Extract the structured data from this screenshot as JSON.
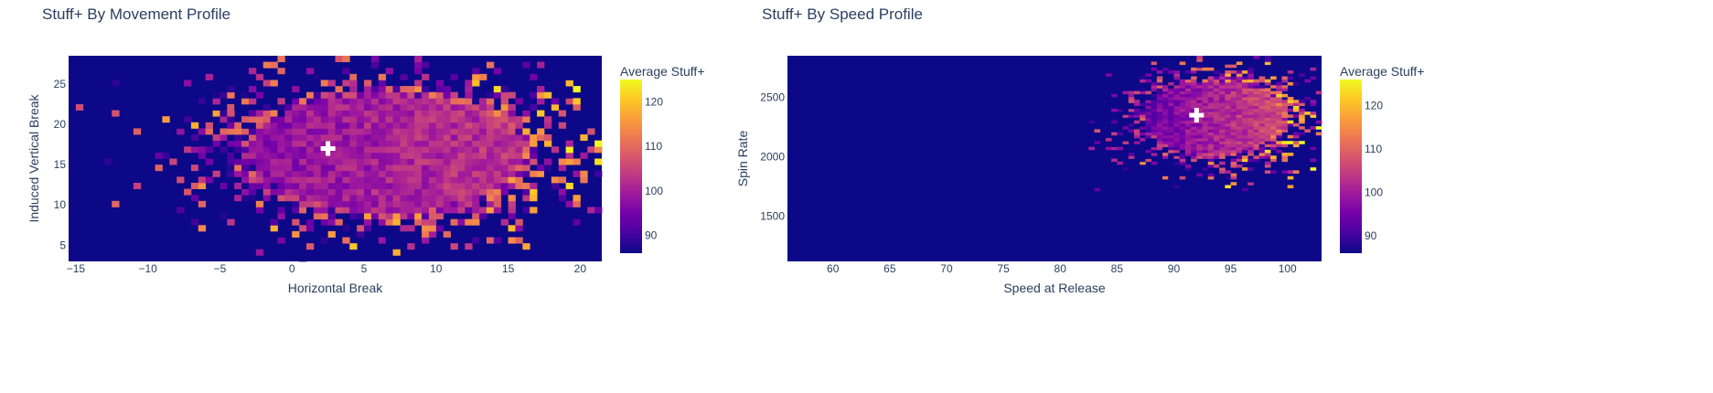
{
  "colors": {
    "background": "#0d0887",
    "colorscale": [
      "#0d0887",
      "#46039f",
      "#7201a8",
      "#9c179e",
      "#bd3786",
      "#d8576b",
      "#ed7953",
      "#fb9f3a",
      "#fdca26",
      "#f0f921"
    ],
    "marker": "#ffffff",
    "text": "#2a3f5f"
  },
  "chart_data": [
    {
      "type": "heatmap",
      "title": "Stuff+ By Movement Profile",
      "xlabel": "Horizontal Break",
      "ylabel": "Induced Vertical Break",
      "xlim": [
        -15.5,
        21.5
      ],
      "ylim": [
        3,
        28.5
      ],
      "xticks": [
        -15,
        -10,
        -5,
        0,
        5,
        10,
        15,
        20
      ],
      "yticks": [
        5,
        10,
        15,
        20,
        25
      ],
      "bins": {
        "x": 74,
        "y": 34
      },
      "density": {
        "cx": 6.5,
        "cy": 16.5,
        "sx": 6.5,
        "sy": 5.0
      },
      "value_trend": {
        "base": 100,
        "slope_x": 0.3,
        "pivot_x": 5
      },
      "marker": {
        "symbol": "cross",
        "x": 2.5,
        "y": 17
      },
      "colorbar": {
        "title": "Average Stuff+",
        "min": 86,
        "max": 125,
        "ticks": [
          90,
          100,
          110,
          120
        ]
      }
    },
    {
      "type": "heatmap",
      "title": "Stuff+ By Speed Profile",
      "xlabel": "Speed at Release",
      "ylabel": "Spin Rate",
      "xlim": [
        56,
        103
      ],
      "ylim": [
        1120,
        2850
      ],
      "xticks": [
        60,
        65,
        70,
        75,
        80,
        85,
        90,
        95,
        100
      ],
      "yticks": [
        1500,
        2000,
        2500
      ],
      "bins": {
        "x": 94,
        "y": 70
      },
      "density": {
        "cx": 93.5,
        "cy": 2330,
        "sx": 4.2,
        "sy": 210
      },
      "value_trend": {
        "base": 100,
        "slope_x": 1.1,
        "pivot_x": 93
      },
      "marker": {
        "symbol": "cross",
        "x": 92,
        "y": 2350
      },
      "colorbar": {
        "title": "Average Stuff+",
        "min": 86,
        "max": 126,
        "ticks": [
          90,
          100,
          110,
          120
        ]
      }
    }
  ]
}
